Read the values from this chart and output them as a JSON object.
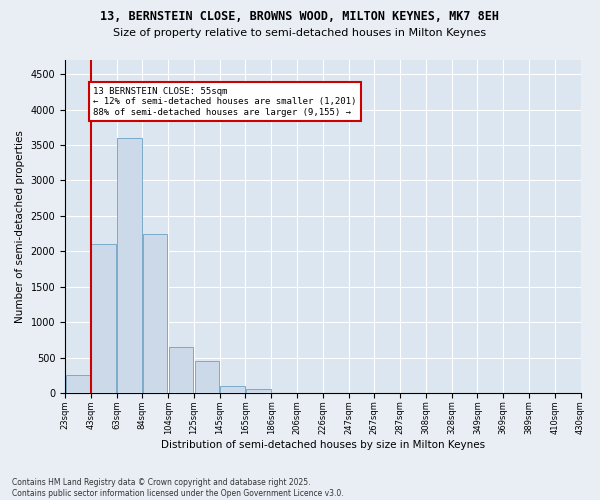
{
  "title1": "13, BERNSTEIN CLOSE, BROWNS WOOD, MILTON KEYNES, MK7 8EH",
  "title2": "Size of property relative to semi-detached houses in Milton Keynes",
  "xlabel": "Distribution of semi-detached houses by size in Milton Keynes",
  "ylabel": "Number of semi-detached properties",
  "bins": [
    "23sqm",
    "43sqm",
    "63sqm",
    "84sqm",
    "104sqm",
    "125sqm",
    "145sqm",
    "165sqm",
    "186sqm",
    "206sqm",
    "226sqm",
    "247sqm",
    "267sqm",
    "287sqm",
    "308sqm",
    "328sqm",
    "349sqm",
    "369sqm",
    "389sqm",
    "410sqm",
    "430sqm"
  ],
  "values": [
    250,
    2100,
    3600,
    2250,
    650,
    450,
    100,
    60,
    0,
    0,
    0,
    0,
    0,
    0,
    0,
    0,
    0,
    0,
    0,
    0
  ],
  "bar_color": "#ccd9e8",
  "bar_edge_color": "#7aaaca",
  "vline_color": "#cc0000",
  "annotation_title": "13 BERNSTEIN CLOSE: 55sqm",
  "annotation_line1": "← 12% of semi-detached houses are smaller (1,201)",
  "annotation_line2": "88% of semi-detached houses are larger (9,155) →",
  "annotation_box_color": "#cc0000",
  "ylim": [
    0,
    4700
  ],
  "yticks": [
    0,
    500,
    1000,
    1500,
    2000,
    2500,
    3000,
    3500,
    4000,
    4500
  ],
  "footnote1": "Contains HM Land Registry data © Crown copyright and database right 2025.",
  "footnote2": "Contains public sector information licensed under the Open Government Licence v3.0.",
  "bg_color": "#e8eef4",
  "plot_bg_color": "#dce6f0"
}
